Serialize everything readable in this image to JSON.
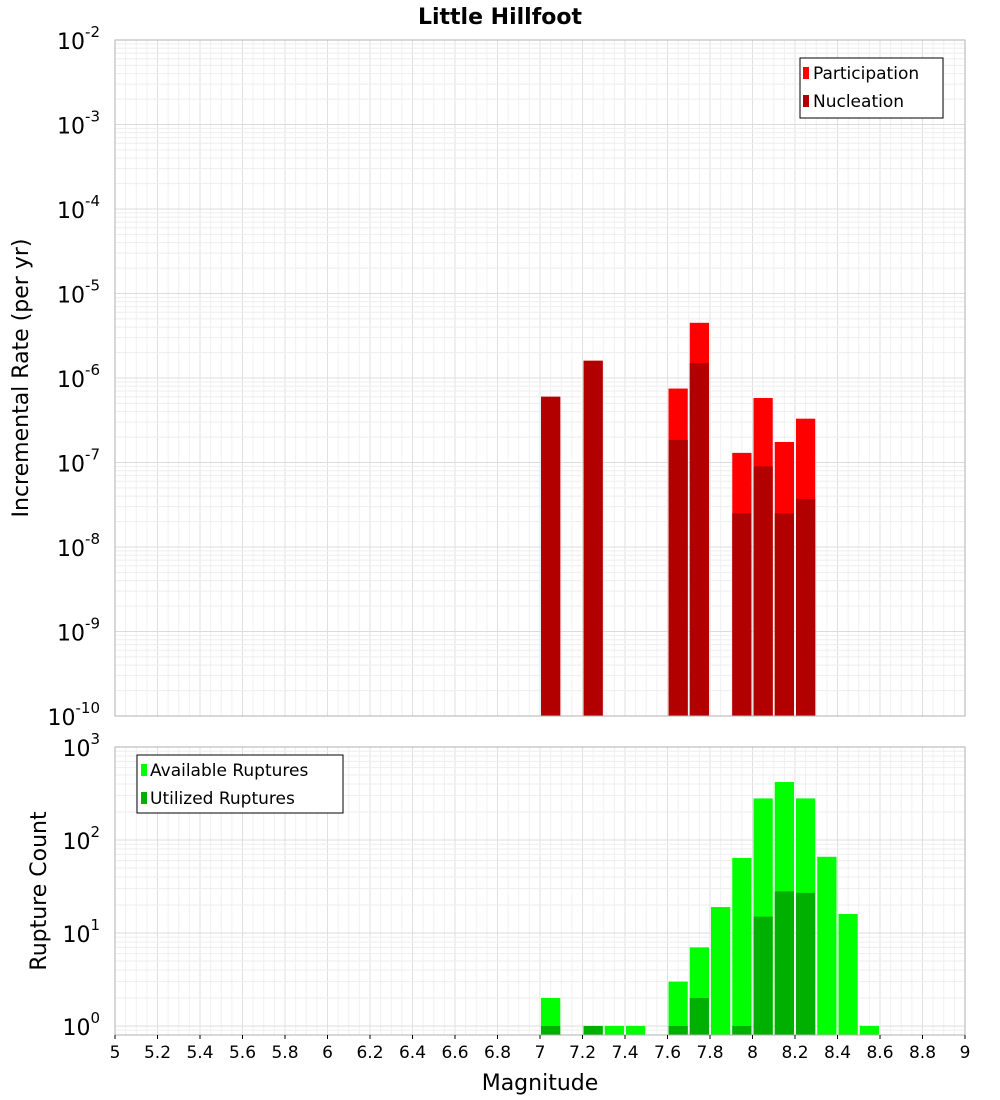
{
  "chart_data": [
    {
      "type": "bar",
      "panel": "top",
      "title": "Little Hillfoot",
      "ylabel": "Incremental Rate (per yr)",
      "xlabel": "",
      "yscale": "log",
      "ylim": [
        1e-10,
        0.01
      ],
      "xlim": [
        5,
        9
      ],
      "bar_width": 0.1,
      "y_ticks": [
        {
          "base": "10",
          "exp": "-10",
          "value": 1e-10
        },
        {
          "base": "10",
          "exp": "-9",
          "value": 1e-09
        },
        {
          "base": "10",
          "exp": "-8",
          "value": 1e-08
        },
        {
          "base": "10",
          "exp": "-7",
          "value": 1e-07
        },
        {
          "base": "10",
          "exp": "-6",
          "value": 1e-06
        },
        {
          "base": "10",
          "exp": "-5",
          "value": 1e-05
        },
        {
          "base": "10",
          "exp": "-4",
          "value": 0.0001
        },
        {
          "base": "10",
          "exp": "-3",
          "value": 0.001
        },
        {
          "base": "10",
          "exp": "-2",
          "value": 0.01
        }
      ],
      "legend_position": "top-right",
      "grid": true,
      "series": [
        {
          "name": "Participation",
          "color": "#ff0000",
          "x": [
            7.05,
            7.25,
            7.65,
            7.75,
            7.95,
            8.05,
            8.15,
            8.25
          ],
          "values": [
            6e-07,
            1.6e-06,
            7.5e-07,
            4.5e-06,
            1.3e-07,
            5.8e-07,
            1.75e-07,
            3.3e-07
          ]
        },
        {
          "name": "Nucleation",
          "color": "#b20000",
          "x": [
            7.05,
            7.25,
            7.65,
            7.75,
            7.95,
            8.05,
            8.15,
            8.25
          ],
          "values": [
            6e-07,
            1.6e-06,
            1.85e-07,
            1.5e-06,
            2.5e-08,
            9e-08,
            2.5e-08,
            3.7e-08
          ]
        }
      ]
    },
    {
      "type": "bar",
      "panel": "bottom",
      "ylabel": "Rupture Count",
      "xlabel": "Magnitude",
      "yscale": "log",
      "ylim": [
        0.8,
        1000
      ],
      "xlim": [
        5,
        9
      ],
      "bar_width": 0.1,
      "x_tick_labels": [
        "5",
        "5.2",
        "5.4",
        "5.6",
        "5.8",
        "6",
        "6.2",
        "6.4",
        "6.6",
        "6.8",
        "7",
        "7.2",
        "7.4",
        "7.6",
        "7.8",
        "8",
        "8.2",
        "8.4",
        "8.6",
        "8.8",
        "9"
      ],
      "y_ticks": [
        {
          "base": "10",
          "exp": "0",
          "value": 1
        },
        {
          "base": "10",
          "exp": "1",
          "value": 10
        },
        {
          "base": "10",
          "exp": "2",
          "value": 100
        },
        {
          "base": "10",
          "exp": "3",
          "value": 1000
        }
      ],
      "legend_position": "top-left",
      "grid": true,
      "series": [
        {
          "name": "Available Ruptures",
          "color": "#00ff00",
          "x": [
            7.05,
            7.25,
            7.35,
            7.45,
            7.65,
            7.75,
            7.85,
            7.95,
            8.05,
            8.15,
            8.25,
            8.35,
            8.45,
            8.55
          ],
          "values": [
            2,
            1,
            1,
            1,
            3,
            7,
            19,
            64,
            280,
            420,
            280,
            66,
            16,
            1
          ]
        },
        {
          "name": "Utilized Ruptures",
          "color": "#00b000",
          "x": [
            7.05,
            7.25,
            7.65,
            7.75,
            7.95,
            8.05,
            8.15,
            8.25
          ],
          "values": [
            1,
            1,
            1,
            2,
            1,
            15,
            28,
            27
          ]
        }
      ]
    }
  ]
}
